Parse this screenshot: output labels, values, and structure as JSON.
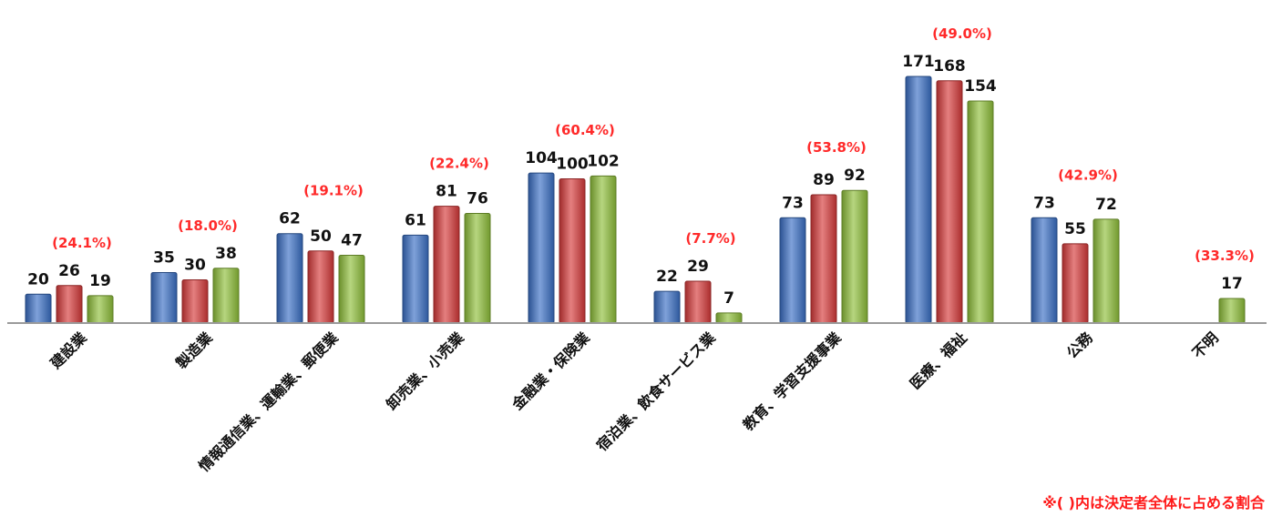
{
  "chart_data": {
    "type": "bar",
    "title": "",
    "xlabel": "",
    "ylabel": "",
    "ylim": [
      0,
      185
    ],
    "grid": false,
    "legend": "none",
    "categories": [
      "建設業",
      "製造業",
      "情報通信業、運輸業、郵便業",
      "卸売業、小売業",
      "金融業・保険業",
      "宿泊業、飲食サービス業",
      "教育、学習支援事業",
      "医療、福祉",
      "公務",
      "不明"
    ],
    "series": [
      {
        "color": "#3a6fc4",
        "values": [
          20,
          35,
          62,
          61,
          104,
          22,
          73,
          171,
          73,
          null
        ]
      },
      {
        "color": "#d63a3a",
        "values": [
          26,
          30,
          50,
          81,
          100,
          29,
          89,
          168,
          55,
          null
        ]
      },
      {
        "color": "#8fbf3a",
        "values": [
          19,
          38,
          47,
          76,
          102,
          7,
          92,
          154,
          72,
          17
        ]
      }
    ],
    "value_labels": [
      [
        "20",
        "35",
        "62",
        "61",
        "104",
        "22",
        "73",
        "171",
        "73",
        ""
      ],
      [
        "26",
        "30",
        "50",
        "81",
        "100",
        "29",
        "89",
        "168",
        "55",
        ""
      ],
      [
        "19",
        "38",
        "47",
        "76",
        "102",
        "7",
        "92",
        "154",
        "72",
        "17"
      ]
    ],
    "annotations": [
      "(24.1%)",
      "(18.0%)",
      "(19.1%)",
      "(22.4%)",
      "(60.4%)",
      "(7.7%)",
      "(53.8%)",
      "(49.0%)",
      "(42.9%)",
      "(33.3%)"
    ],
    "annotation_color": "#ff2a2a"
  },
  "note": "※( )内は決定者全体に占める割合"
}
